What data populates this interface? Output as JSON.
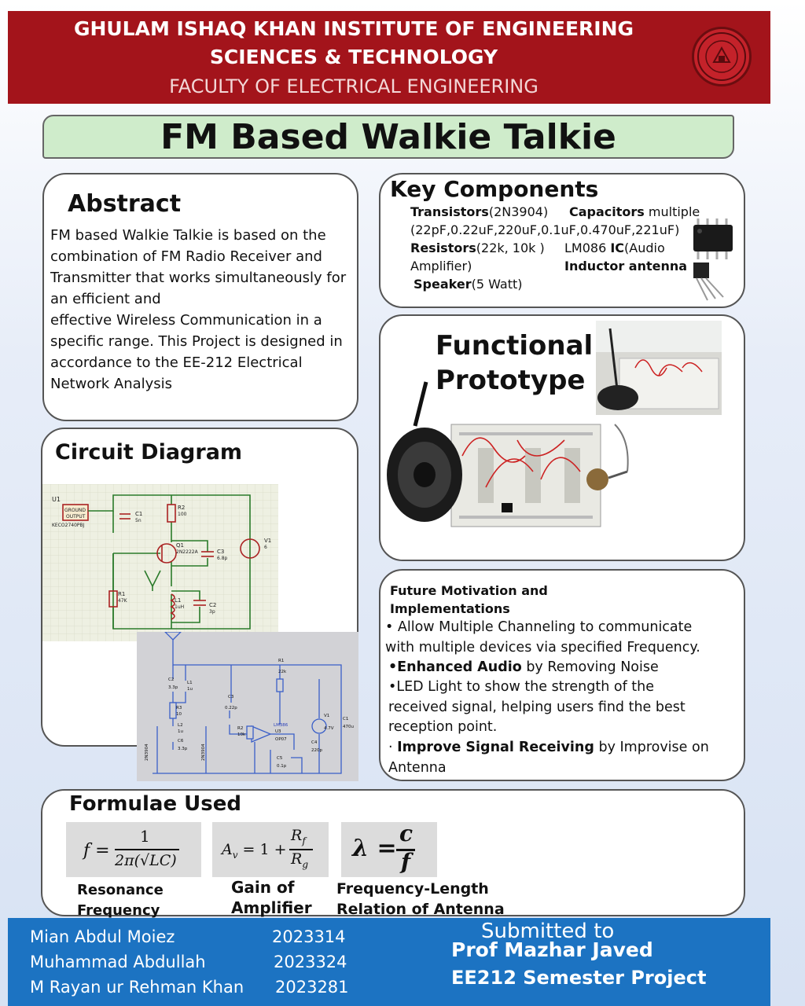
{
  "header": {
    "line1": "GHULAM ISHAQ KHAN INSTITUTE OF ENGINEERING",
    "line2": "SCIENCES & TECHNOLOGY",
    "line3": "FACULTY OF ELECTRICAL ENGINEERING"
  },
  "title": "FM Based Walkie Talkie",
  "abstract": {
    "heading": "Abstract",
    "lines": [
      "FM based Walkie Talkie is based on the",
      "combination of FM Radio Receiver and",
      "Transmitter that works simultaneously for",
      "an efficient and",
      "effective Wireless Communication in a",
      "specific range. This Project is designed in",
      "accordance to the EE-212 Electrical",
      "Network Analysis"
    ]
  },
  "key_components": {
    "heading": "Key Components",
    "transistors_label": "Transistors",
    "transistors_value": "(2N3904)",
    "capacitors_label": "Capacitors",
    "capacitors_value": " multiple",
    "capacitors_list": "(22pF,0.22uF,220uF,0.1uF,0.470uF,221uF)",
    "resistors_label": "Resistors",
    "resistors_value": "(22k, 10k )",
    "ic_prefix": "LM086 ",
    "ic_label": "IC",
    "ic_value": "(Audio",
    "amplifier": "Amplifier)",
    "inductor": "Inductor antenna",
    "speaker_label": "Speaker",
    "speaker_value": "(5 Watt)"
  },
  "prototype": {
    "heading_line1": "Functional",
    "heading_line2": "Prototype"
  },
  "circuit": {
    "heading": "Circuit Diagram",
    "tx_labels": {
      "u1": "U1",
      "ground_output": "GROUND",
      "output": "OUTPUT",
      "part": "KECO2740PBJ",
      "c1": "C1",
      "c1v": "5n",
      "r2": "R2",
      "r2v": "100",
      "q1": "Q1",
      "q1v": "2N2222A",
      "c3": "C3",
      "c3v": "6.8p",
      "v1": "V1",
      "v1v": "6",
      "r1": "R1",
      "r1v": "47K",
      "l1": "L1",
      "l1v": "1uH",
      "c2": "C2",
      "c2v": "3p"
    },
    "rx_labels": {
      "r1": "R1",
      "r1v": "22k",
      "c2": "C2",
      "c2v": "3.3p",
      "l1": "L1",
      "l1v": "1u",
      "c3": "C3",
      "c3v": "0.22p",
      "r3": "R3",
      "r3v": "10",
      "l2": "L2",
      "l2v": "1u",
      "c6": "C6",
      "c6v": "3.3p",
      "r2": "R2",
      "r2v": "10k",
      "lm": "LM386",
      "u3": "U3",
      "op": "OP07",
      "v1": "V1",
      "v1v": "4.7V",
      "c1": "C1",
      "c1v": "470u",
      "c4": "C4",
      "c4v": "220p",
      "c5": "C5",
      "c5v": "0.1p",
      "q1": "2N3904",
      "q2": "2N3904"
    }
  },
  "future": {
    "heading_line1": "Future Motivation and",
    "heading_line2": "Implementations",
    "p1a": "• Allow Multiple Channeling to communicate",
    "p1b": "with multiple devices via specified Frequency.",
    "p2_bold": "•Enhanced Audio",
    "p2_rest": " by Removing Noise",
    "p3a": " •LED Light to show the strength of the",
    "p3b": "received signal, helping users find the best",
    "p3c": "reception point.",
    "p4_prefix": "· ",
    "p4_bold": "Improve Signal Receiving",
    "p4_rest": " by Improvise on",
    "p4b": "Antenna"
  },
  "formulae": {
    "heading": "Formulae Used",
    "f1_lhs": "f =",
    "f1_num": "1",
    "f1_den": "2π(√LC)",
    "f1_label1": "Resonance",
    "f1_label2": "Frequency",
    "f2_lhs": "A",
    "f2_sub": "v",
    "f2_mid": " = 1 +",
    "f2_num": "R",
    "f2_num_sub": "f",
    "f2_den": "R",
    "f2_den_sub": "g",
    "f2_label1": "Gain of",
    "f2_label2": "Amplifier",
    "f3_lhs": "λ =",
    "f3_num": "c",
    "f3_den": "f",
    "f3_label1": "Frequency-Length",
    "f3_label2": "Relation of Antenna"
  },
  "footer": {
    "members": [
      {
        "name": "Mian Abdul Moiez",
        "id": "2023314"
      },
      {
        "name": "Muhammad Abdullah",
        "id": "2023324"
      },
      {
        "name": "M Rayan ur Rehman Khan",
        "id": "2023281"
      }
    ],
    "submitted_to": "Submitted to",
    "professor": "Prof Mazhar Javed",
    "project": "EE212 Semester Project"
  },
  "colors": {
    "header_red": "#a3141b",
    "title_green": "#cfeccb",
    "footer_blue": "#1c73c2"
  }
}
